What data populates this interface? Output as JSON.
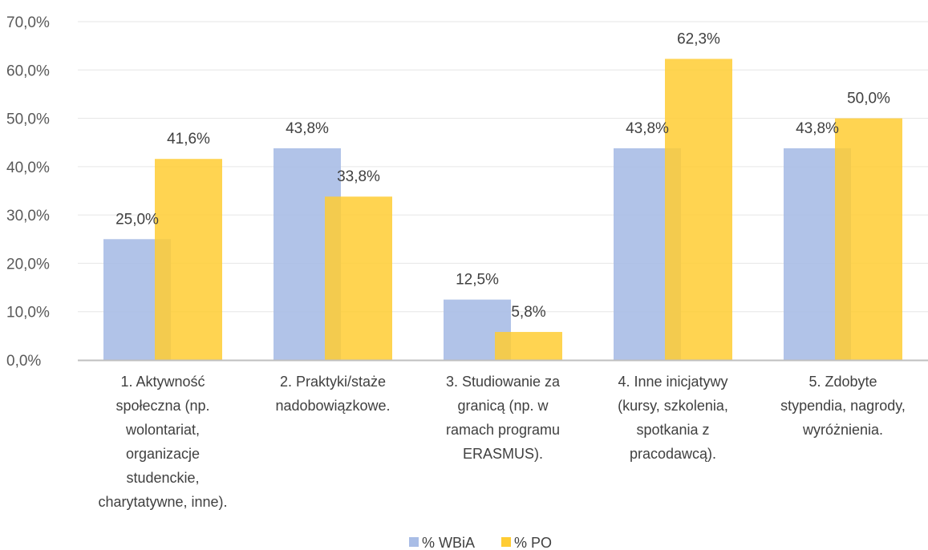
{
  "chart_data": {
    "type": "bar",
    "categories": [
      [
        "1. Aktywność",
        "społeczna (np.",
        "wolontariat,",
        "organizacje",
        "studenckie,",
        "charytatywne, inne)."
      ],
      [
        "2. Praktyki/staże",
        "nadobowiązkowe."
      ],
      [
        "3. Studiowanie za",
        "granicą (np. w",
        "ramach programu",
        "ERASMUS)."
      ],
      [
        "4. Inne inicjatywy",
        "(kursy, szkolenia,",
        "spotkania z",
        "pracodawcą)."
      ],
      [
        "5. Zdobyte",
        "stypendia, nagrody,",
        "wyróżnienia."
      ]
    ],
    "series": [
      {
        "name": "% WBiA",
        "color": "#a9bde6",
        "values": [
          25.0,
          43.8,
          12.5,
          43.8,
          43.8
        ],
        "labels": [
          "25,0%",
          "43,8%",
          "12,5%",
          "43,8%",
          "43,8%"
        ]
      },
      {
        "name": "% PO",
        "color": "#ffcc33",
        "values": [
          41.6,
          33.8,
          5.8,
          62.3,
          50.0
        ],
        "labels": [
          "41,6%",
          "33,8%",
          "5,8%",
          "62,3%",
          "50,0%"
        ]
      }
    ],
    "ylim": [
      0,
      70
    ],
    "yticks": [
      0,
      10,
      20,
      30,
      40,
      50,
      60,
      70
    ],
    "ytick_labels": [
      "0,0%",
      "10,0%",
      "20,0%",
      "30,0%",
      "40,0%",
      "50,0%",
      "60,0%",
      "70,0%"
    ],
    "grid": true,
    "legend": "bottom"
  }
}
